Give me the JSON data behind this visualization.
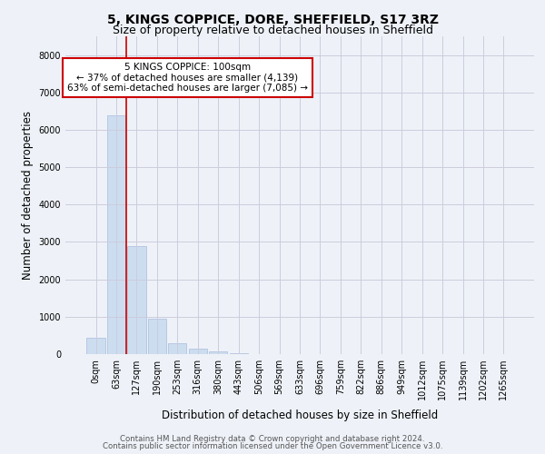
{
  "title_line1": "5, KINGS COPPICE, DORE, SHEFFIELD, S17 3RZ",
  "title_line2": "Size of property relative to detached houses in Sheffield",
  "xlabel": "Distribution of detached houses by size in Sheffield",
  "ylabel": "Number of detached properties",
  "categories": [
    "0sqm",
    "63sqm",
    "127sqm",
    "190sqm",
    "253sqm",
    "316sqm",
    "380sqm",
    "443sqm",
    "506sqm",
    "569sqm",
    "633sqm",
    "696sqm",
    "759sqm",
    "822sqm",
    "886sqm",
    "949sqm",
    "1012sqm",
    "1075sqm",
    "1139sqm",
    "1202sqm",
    "1265sqm"
  ],
  "values": [
    430,
    6380,
    2900,
    950,
    300,
    150,
    80,
    30,
    10,
    5,
    3,
    2,
    1,
    1,
    1,
    0,
    0,
    0,
    0,
    0,
    0
  ],
  "bar_color": "#ccddf0",
  "bar_edge_color": "#aabbdd",
  "vline_x": 1.5,
  "vline_color": "#cc0000",
  "annotation_text": "5 KINGS COPPICE: 100sqm\n← 37% of detached houses are smaller (4,139)\n63% of semi-detached houses are larger (7,085) →",
  "annotation_box_color": "white",
  "annotation_box_edge_color": "#cc0000",
  "ylim": [
    0,
    8500
  ],
  "yticks": [
    0,
    1000,
    2000,
    3000,
    4000,
    5000,
    6000,
    7000,
    8000
  ],
  "grid_color": "#ccccdd",
  "background_color": "#eef2f8",
  "footer_line1": "Contains HM Land Registry data © Crown copyright and database right 2024.",
  "footer_line2": "Contains public sector information licensed under the Open Government Licence v3.0.",
  "title_fontsize": 10,
  "subtitle_fontsize": 9,
  "axis_label_fontsize": 8.5,
  "tick_fontsize": 7,
  "annotation_fontsize": 7.5
}
